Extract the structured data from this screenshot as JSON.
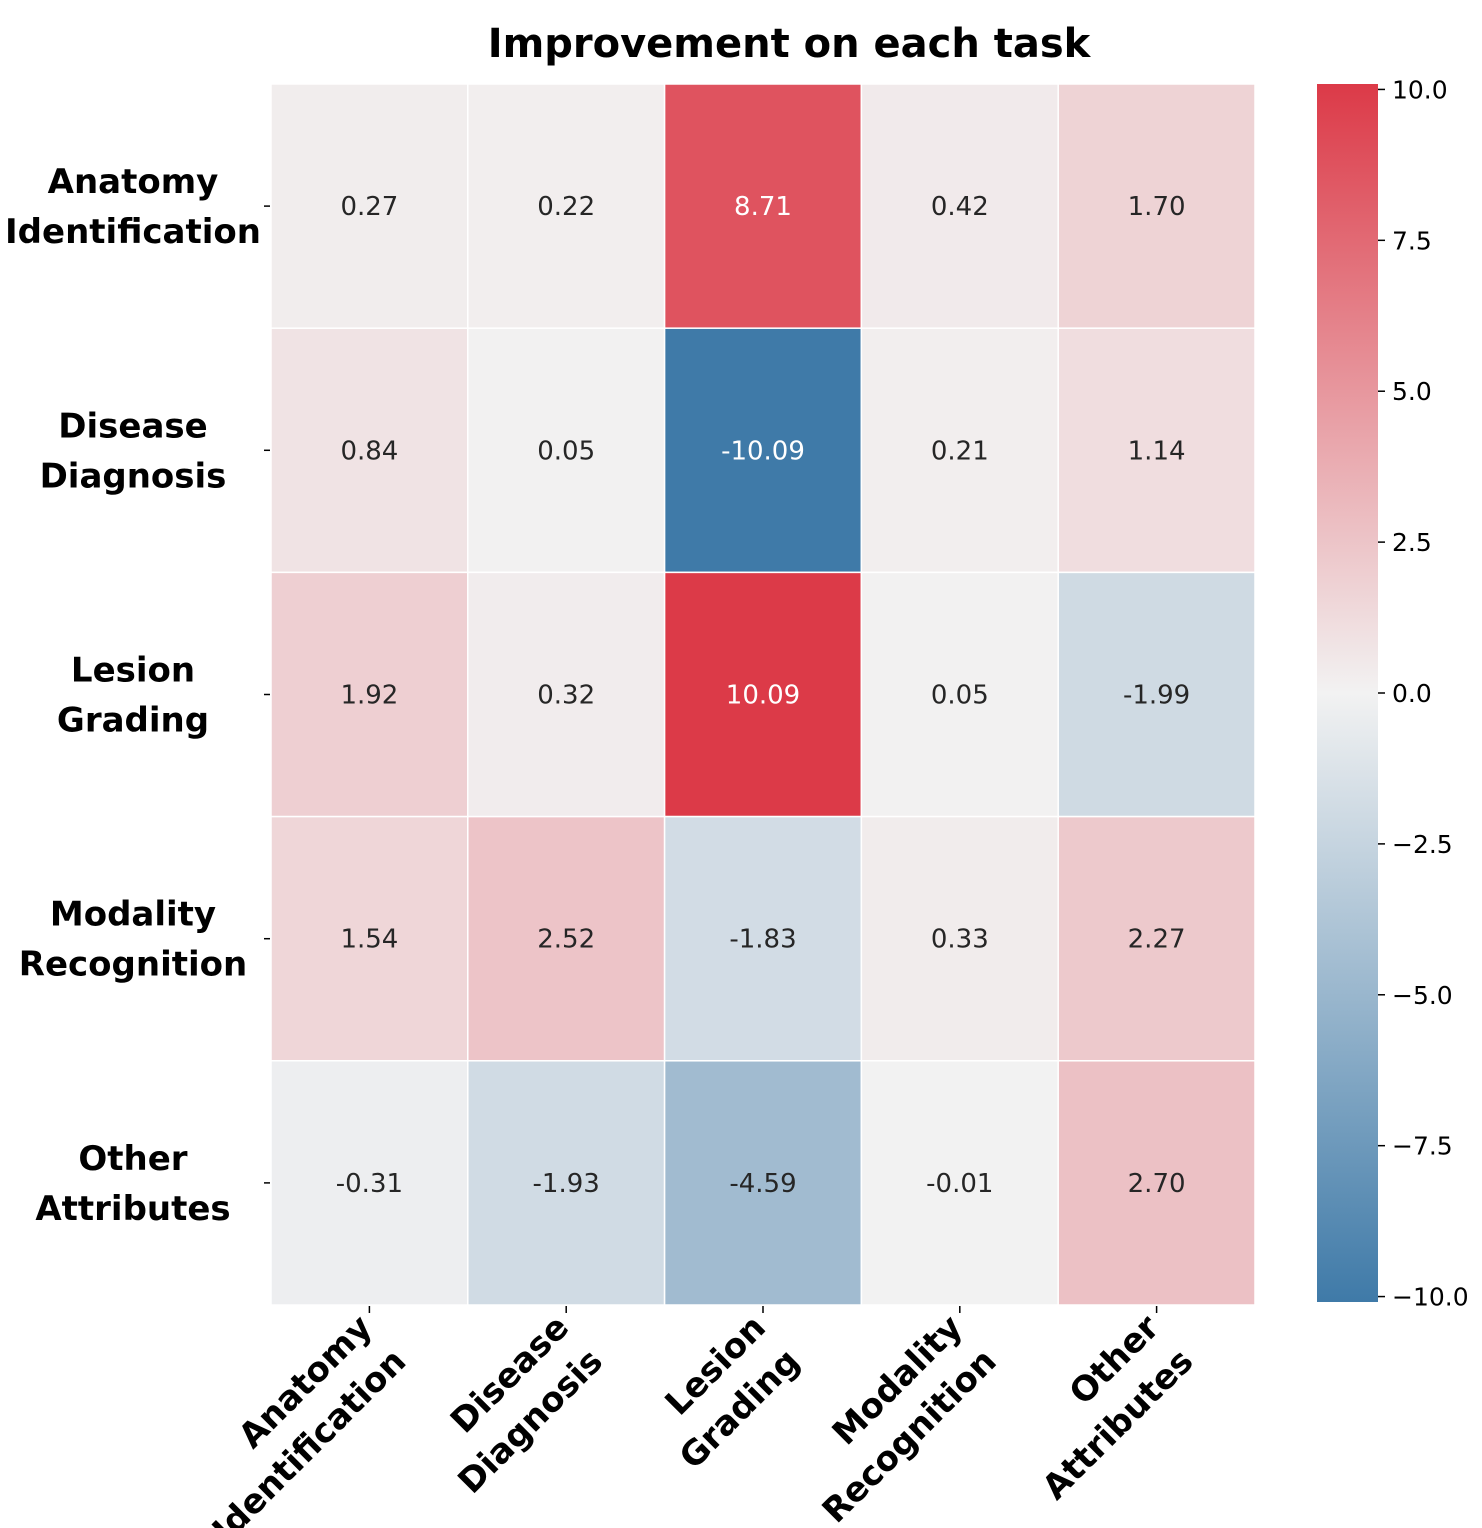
{
  "chart_data": {
    "type": "heatmap",
    "title": "Improvement on each task",
    "rows": [
      [
        "Anatomy",
        "Identification"
      ],
      [
        "Disease",
        "Diagnosis"
      ],
      [
        "Lesion",
        "Grading"
      ],
      [
        "Modality",
        "Recognition"
      ],
      [
        "Other",
        "Attributes"
      ]
    ],
    "columns": [
      [
        "Anatomy",
        "Identification"
      ],
      [
        "Disease",
        "Diagnosis"
      ],
      [
        "Lesion",
        "Grading"
      ],
      [
        "Modality",
        "Recognition"
      ],
      [
        "Other",
        "Attributes"
      ]
    ],
    "values": [
      [
        0.27,
        0.22,
        8.71,
        0.42,
        1.7
      ],
      [
        0.84,
        0.05,
        -10.09,
        0.21,
        1.14
      ],
      [
        1.92,
        0.32,
        10.09,
        0.05,
        -1.99
      ],
      [
        1.54,
        2.52,
        -1.83,
        0.33,
        2.27
      ],
      [
        -0.31,
        -1.93,
        -4.59,
        -0.01,
        2.7
      ]
    ],
    "value_labels": [
      [
        "0.27",
        "0.22",
        "8.71",
        "0.42",
        "1.70"
      ],
      [
        "0.84",
        "0.05",
        "-10.09",
        "0.21",
        "1.14"
      ],
      [
        "1.92",
        "0.32",
        "10.09",
        "0.05",
        "-1.99"
      ],
      [
        "1.54",
        "2.52",
        "-1.83",
        "0.33",
        "2.27"
      ],
      [
        "-0.31",
        "-1.93",
        "-4.59",
        "-0.01",
        "2.70"
      ]
    ],
    "colorbar": {
      "range": [
        -10.09,
        10.09
      ],
      "ticks": [
        10.0,
        7.5,
        5.0,
        2.5,
        0.0,
        -2.5,
        -5.0,
        -7.5,
        -10.0
      ],
      "tick_labels": [
        "10.0",
        "7.5",
        "5.0",
        "2.5",
        "0.0",
        "−2.5",
        "−5.0",
        "−7.5",
        "−10.0"
      ],
      "colors": {
        "low": "#3f7aa8",
        "mid": "#f2f2f2",
        "high": "#dc3a48"
      }
    }
  }
}
